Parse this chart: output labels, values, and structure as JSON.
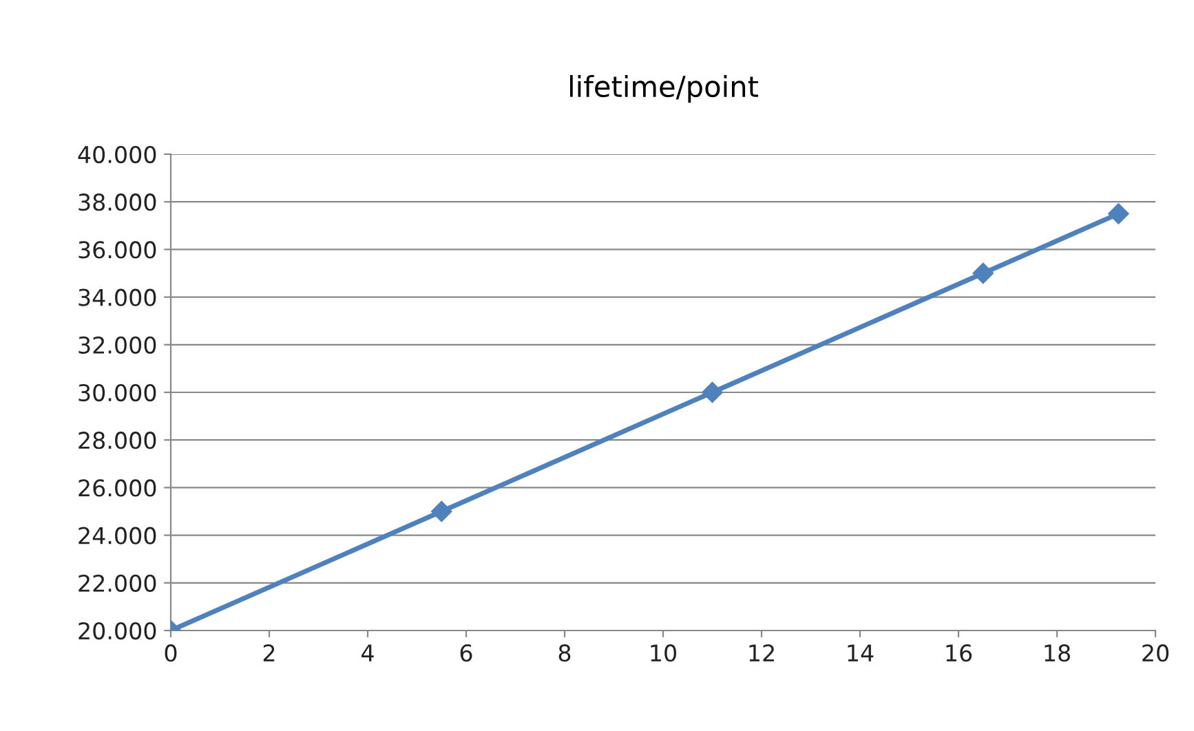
{
  "chart_data": {
    "type": "line",
    "title": "lifetime/point",
    "x": [
      0,
      5.5,
      11,
      16.5,
      19.25
    ],
    "series": [
      {
        "color": "#4f81bd",
        "values": [
          20000,
          25000,
          30000,
          35000,
          37500
        ]
      }
    ],
    "xlim": [
      0,
      20
    ],
    "xticks": [
      0,
      2,
      4,
      6,
      8,
      10,
      12,
      14,
      16,
      18,
      20
    ],
    "ylim": [
      20000,
      40000
    ],
    "yticks": [
      {
        "value": 20000,
        "label": "20.000"
      },
      {
        "value": 22000,
        "label": "22.000"
      },
      {
        "value": 24000,
        "label": "24.000"
      },
      {
        "value": 26000,
        "label": "26.000"
      },
      {
        "value": 28000,
        "label": "28.000"
      },
      {
        "value": 30000,
        "label": "30.000"
      },
      {
        "value": 32000,
        "label": "32.000"
      },
      {
        "value": 34000,
        "label": "34.000"
      },
      {
        "value": 36000,
        "label": "36.000"
      },
      {
        "value": 38000,
        "label": "38.000"
      },
      {
        "value": 40000,
        "label": "40.000"
      }
    ],
    "grid": "y",
    "marker": "diamond",
    "line_style": "solid",
    "legend": false
  }
}
